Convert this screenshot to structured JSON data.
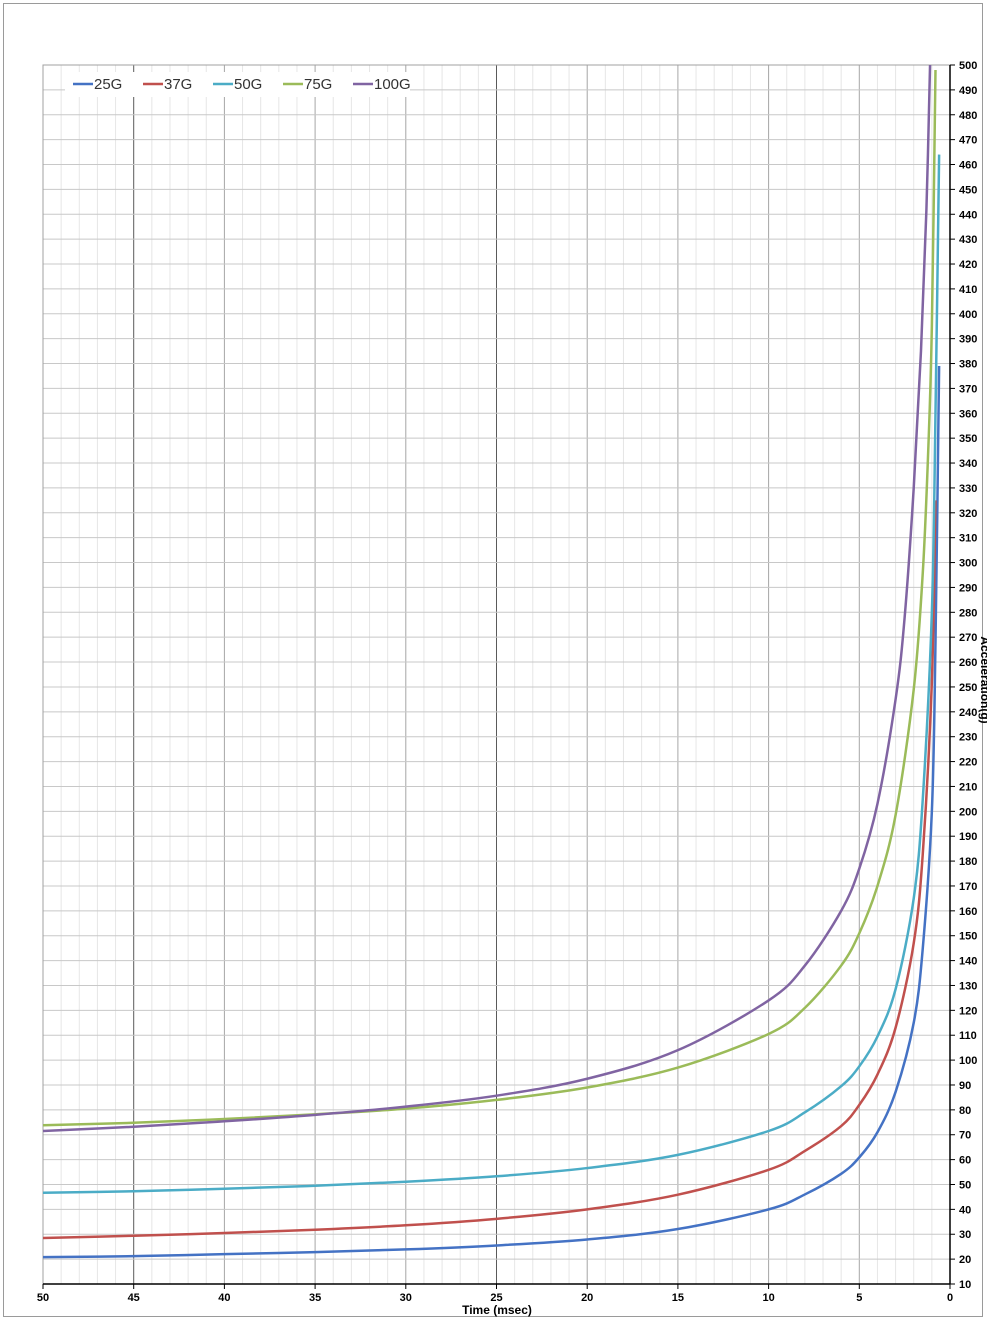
{
  "chart_data": {
    "type": "line",
    "title": "",
    "xlabel": "Time (msec)",
    "ylabel": "Acceleration(g)",
    "x_reversed": true,
    "xlim": [
      0,
      50
    ],
    "ylim": [
      10,
      500
    ],
    "x_ticks": [
      "50",
      "45",
      "40",
      "35",
      "30",
      "25",
      "20",
      "15",
      "10",
      "5",
      "0"
    ],
    "x_tick_values": [
      50,
      45,
      40,
      35,
      30,
      25,
      20,
      15,
      10,
      5,
      0
    ],
    "y_tick_step": 10,
    "y_ticks": [
      "10",
      "20",
      "30",
      "40",
      "50",
      "60",
      "70",
      "80",
      "90",
      "100",
      "110",
      "120",
      "130",
      "140",
      "150",
      "160",
      "170",
      "180",
      "190",
      "200",
      "210",
      "220",
      "230",
      "240",
      "250",
      "260",
      "270",
      "280",
      "290",
      "300",
      "310",
      "320",
      "330",
      "340",
      "350",
      "360",
      "370",
      "380",
      "390",
      "400",
      "410",
      "420",
      "430",
      "440",
      "450",
      "460",
      "470",
      "480",
      "490",
      "500"
    ],
    "grid": true,
    "legend_position": "top-left",
    "series": [
      {
        "name": "25G",
        "color": "#4472C4",
        "x": [
          50,
          45,
          40,
          35,
          30,
          25,
          20,
          15,
          10,
          8,
          6,
          5,
          4,
          3,
          2,
          1.5,
          1,
          0.8,
          0.6
        ],
        "y": [
          20.8,
          21.2,
          22.0,
          22.8,
          23.9,
          25.5,
          27.9,
          32.1,
          40.0,
          46.0,
          54.3,
          60.9,
          71.0,
          87.2,
          115.0,
          145.0,
          200.0,
          268.0,
          379.0
        ]
      },
      {
        "name": "37G",
        "color": "#C0504D",
        "x": [
          50,
          45,
          40,
          35,
          30,
          25,
          20,
          15,
          10,
          8,
          6,
          5,
          4,
          3,
          2,
          1.5,
          1,
          0.8
        ],
        "y": [
          28.5,
          29.4,
          30.5,
          31.8,
          33.6,
          36.2,
          40.0,
          45.9,
          55.9,
          63.5,
          73.5,
          82.0,
          94.2,
          113.0,
          147.0,
          183.0,
          252.0,
          325.0
        ]
      },
      {
        "name": "50G",
        "color": "#4BACC6",
        "x": [
          50,
          45,
          40,
          35,
          30,
          25,
          20,
          15,
          10,
          8,
          6,
          5,
          4,
          3,
          2,
          1.5,
          1,
          0.8,
          0.6
        ],
        "y": [
          46.7,
          47.3,
          48.3,
          49.5,
          51.1,
          53.3,
          56.6,
          61.9,
          71.5,
          79.0,
          89.5,
          97.5,
          109.5,
          128.5,
          165.0,
          205.0,
          280.0,
          360.0,
          464.0
        ]
      },
      {
        "name": "75G",
        "color": "#9BBB59",
        "x": [
          50,
          45,
          40,
          35,
          30,
          25,
          20,
          15,
          10,
          8,
          6,
          5,
          4,
          3,
          2,
          1.5,
          1.2,
          1,
          0.8
        ],
        "y": [
          73.8,
          74.8,
          76.3,
          78.2,
          80.5,
          84.0,
          89.0,
          97.0,
          110.5,
          121.0,
          138.0,
          151.0,
          170.0,
          198.5,
          249.0,
          296.0,
          345.0,
          395.0,
          498.0
        ]
      },
      {
        "name": "100G",
        "color": "#8064A2",
        "x": [
          50,
          45,
          40,
          35,
          30,
          25,
          20,
          15,
          10,
          8,
          6,
          5,
          4,
          3,
          2.5,
          2,
          1.6,
          1.3,
          1.1
        ],
        "y": [
          71.5,
          73.2,
          75.4,
          78.0,
          81.3,
          85.7,
          92.5,
          104.0,
          124.0,
          138.0,
          160.0,
          177.0,
          203.0,
          245.0,
          278.0,
          330.0,
          385.0,
          442.0,
          500.0
        ]
      }
    ]
  }
}
